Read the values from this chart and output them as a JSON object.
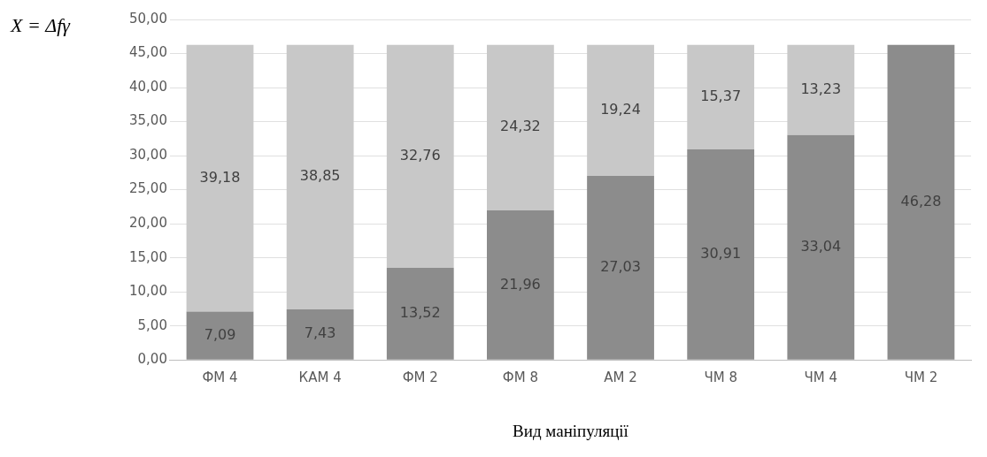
{
  "chart_data": {
    "type": "bar",
    "stacked": true,
    "ylabel": "X = Δfγ",
    "xlabel": "Вид маніпуляції",
    "categories": [
      "ФМ 4",
      "КАМ 4",
      "ФМ 2",
      "ФМ 8",
      "АМ 2",
      "ЧМ 8",
      "ЧМ 4",
      "ЧМ 2"
    ],
    "series": [
      {
        "color": "#8c8c8c",
        "values": [
          7.09,
          7.43,
          13.52,
          21.96,
          27.03,
          30.91,
          33.04,
          46.28
        ],
        "value_labels": [
          "7,09",
          "7,43",
          "13,52",
          "21,96",
          "27,03",
          "30,91",
          "33,04",
          "46,28"
        ]
      },
      {
        "color": "#c8c8c8",
        "values": [
          39.18,
          38.85,
          32.76,
          24.32,
          19.24,
          15.37,
          13.23,
          null
        ],
        "value_labels": [
          "39,18",
          "38,85",
          "32,76",
          "24,32",
          "19,24",
          "15,37",
          "13,23",
          null
        ]
      }
    ],
    "ylim": [
      0,
      50
    ],
    "yticks": [
      {
        "value": 0,
        "label": "0,00"
      },
      {
        "value": 5,
        "label": "5,00"
      },
      {
        "value": 10,
        "label": "10,00"
      },
      {
        "value": 15,
        "label": "15,00"
      },
      {
        "value": 20,
        "label": "20,00"
      },
      {
        "value": 25,
        "label": "25,00"
      },
      {
        "value": 30,
        "label": "30,00"
      },
      {
        "value": 35,
        "label": "35,00"
      },
      {
        "value": 40,
        "label": "40,00"
      },
      {
        "value": 45,
        "label": "45,00"
      },
      {
        "value": 50,
        "label": "50,00"
      }
    ],
    "grid": "y"
  }
}
